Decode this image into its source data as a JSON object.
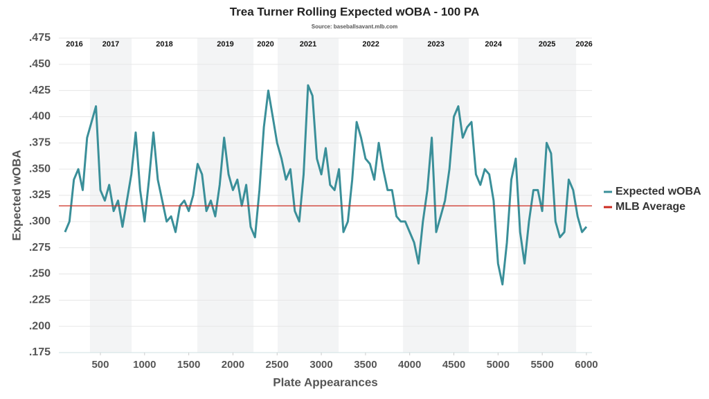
{
  "chart_data": {
    "type": "line",
    "title": "Trea Turner Rolling Expected wOBA - 100 PA",
    "subtitle": "Source: baseballsavant.mlb.com",
    "x_label": "Plate Appearances",
    "y_label": "Expected wOBA",
    "xlim": [
      30,
      6063
    ],
    "ylim": [
      0.175,
      0.475
    ],
    "xticks": [
      500,
      1000,
      1500,
      2000,
      2500,
      3000,
      3500,
      4000,
      4500,
      5000,
      5500,
      6000
    ],
    "yticks": [
      {
        "value": 0.175,
        "label": ".175"
      },
      {
        "value": 0.2,
        "label": ".200"
      },
      {
        "value": 0.225,
        "label": ".225"
      },
      {
        "value": 0.25,
        "label": ".250"
      },
      {
        "value": 0.275,
        "label": ".275"
      },
      {
        "value": 0.3,
        "label": ".300"
      },
      {
        "value": 0.325,
        "label": ".325"
      },
      {
        "value": 0.35,
        "label": ".350"
      },
      {
        "value": 0.375,
        "label": ".375"
      },
      {
        "value": 0.4,
        "label": ".400"
      },
      {
        "value": 0.425,
        "label": ".425"
      },
      {
        "value": 0.45,
        "label": ".450"
      },
      {
        "value": 0.475,
        "label": ".475"
      }
    ],
    "grid": true,
    "legend": "right",
    "seasons": [
      {
        "label": "2016",
        "start": 30,
        "end": 382,
        "shaded": false
      },
      {
        "label": "2017",
        "start": 382,
        "end": 853,
        "shaded": true
      },
      {
        "label": "2018",
        "start": 853,
        "end": 1597,
        "shaded": false
      },
      {
        "label": "2019",
        "start": 1597,
        "end": 2232,
        "shaded": true
      },
      {
        "label": "2020",
        "start": 2232,
        "end": 2506,
        "shaded": false
      },
      {
        "label": "2021",
        "start": 2506,
        "end": 3196,
        "shaded": true
      },
      {
        "label": "2022",
        "start": 3196,
        "end": 3925,
        "shaded": false
      },
      {
        "label": "2023",
        "start": 3925,
        "end": 4669,
        "shaded": true
      },
      {
        "label": "2024",
        "start": 4669,
        "end": 5226,
        "shaded": false
      },
      {
        "label": "2025",
        "start": 5226,
        "end": 5884,
        "shaded": true
      },
      {
        "label": "2026",
        "start": 5884,
        "end": 6063,
        "shaded": false
      }
    ],
    "series": [
      {
        "name": "Expected wOBA",
        "color": "#3a8f99",
        "x": [
          100,
          150,
          200,
          250,
          300,
          350,
          400,
          450,
          500,
          550,
          600,
          650,
          700,
          750,
          800,
          850,
          900,
          950,
          1000,
          1050,
          1100,
          1150,
          1200,
          1250,
          1300,
          1350,
          1400,
          1450,
          1500,
          1550,
          1600,
          1650,
          1700,
          1750,
          1800,
          1850,
          1900,
          1950,
          2000,
          2050,
          2100,
          2150,
          2200,
          2250,
          2300,
          2350,
          2400,
          2450,
          2500,
          2550,
          2600,
          2650,
          2700,
          2750,
          2800,
          2850,
          2900,
          2950,
          3000,
          3050,
          3100,
          3150,
          3200,
          3250,
          3300,
          3350,
          3400,
          3450,
          3500,
          3550,
          3600,
          3650,
          3700,
          3750,
          3800,
          3850,
          3900,
          3950,
          4000,
          4050,
          4100,
          4150,
          4200,
          4250,
          4300,
          4350,
          4400,
          4450,
          4500,
          4550,
          4600,
          4650,
          4700,
          4750,
          4800,
          4850,
          4900,
          4950,
          5000,
          5050,
          5100,
          5150,
          5200,
          5250,
          5300,
          5350,
          5400,
          5450,
          5500,
          5550,
          5600,
          5650,
          5700,
          5750,
          5800,
          5850,
          5900,
          5950,
          6000
        ],
        "values": [
          0.29,
          0.3,
          0.34,
          0.35,
          0.33,
          0.38,
          0.395,
          0.41,
          0.33,
          0.32,
          0.335,
          0.31,
          0.32,
          0.295,
          0.32,
          0.345,
          0.385,
          0.33,
          0.3,
          0.34,
          0.385,
          0.34,
          0.32,
          0.3,
          0.305,
          0.29,
          0.315,
          0.32,
          0.31,
          0.325,
          0.355,
          0.345,
          0.31,
          0.32,
          0.305,
          0.335,
          0.38,
          0.345,
          0.33,
          0.34,
          0.315,
          0.335,
          0.295,
          0.285,
          0.33,
          0.39,
          0.425,
          0.4,
          0.375,
          0.36,
          0.34,
          0.35,
          0.31,
          0.3,
          0.345,
          0.43,
          0.42,
          0.36,
          0.345,
          0.37,
          0.335,
          0.33,
          0.35,
          0.29,
          0.3,
          0.34,
          0.395,
          0.38,
          0.36,
          0.355,
          0.34,
          0.375,
          0.35,
          0.33,
          0.33,
          0.305,
          0.3,
          0.3,
          0.29,
          0.28,
          0.26,
          0.3,
          0.33,
          0.38,
          0.29,
          0.305,
          0.32,
          0.35,
          0.4,
          0.41,
          0.38,
          0.39,
          0.395,
          0.345,
          0.335,
          0.35,
          0.345,
          0.32,
          0.26,
          0.24,
          0.28,
          0.34,
          0.36,
          0.29,
          0.26,
          0.3,
          0.33,
          0.33,
          0.31,
          0.375,
          0.365,
          0.3,
          0.285,
          0.29,
          0.34,
          0.33,
          0.305,
          0.29,
          0.295
        ]
      },
      {
        "name": "MLB Average",
        "color": "#cc2a1f",
        "value": 0.315
      }
    ]
  }
}
